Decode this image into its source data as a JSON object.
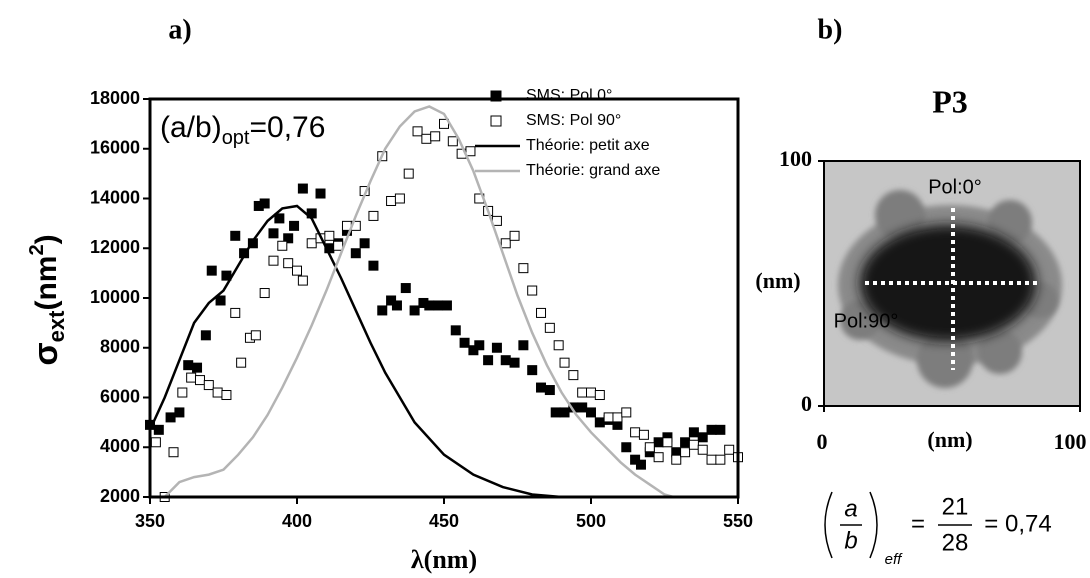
{
  "chart_data": [
    {
      "type": "combo",
      "panel": "a)",
      "annotation": {
        "text": "(a/b)",
        "sub": "opt",
        "suffix": "=0,76"
      },
      "ylabel": {
        "symbol": "σ",
        "sub": "ext",
        "unit": "(nm",
        "sup": "2",
        "close": ")"
      },
      "xlabel": "λ(nm)",
      "xlim": [
        350,
        550
      ],
      "xticks": [
        350,
        400,
        450,
        500,
        550
      ],
      "ylim": [
        2000,
        18000
      ],
      "yticks": [
        2000,
        4000,
        6000,
        8000,
        10000,
        12000,
        14000,
        16000,
        18000
      ],
      "legend": "top-right",
      "series": [
        {
          "name": "SMS: Pol 0°",
          "type": "scatter",
          "marker": "filled",
          "color": "#000000",
          "x": [
            350,
            353,
            357,
            360,
            363,
            366,
            369,
            371,
            374,
            376,
            379,
            382,
            385,
            387,
            389,
            392,
            394,
            397,
            399,
            402,
            405,
            408,
            411,
            414,
            417,
            420,
            423,
            426,
            429,
            432,
            434,
            437,
            440,
            443,
            445,
            448,
            451,
            454,
            457,
            460,
            462,
            465,
            468,
            471,
            474,
            477,
            480,
            483,
            486,
            488,
            491,
            494,
            497,
            500,
            503,
            506,
            509,
            512,
            515,
            517,
            520,
            523,
            526,
            529,
            532,
            535,
            538,
            541,
            544
          ],
          "values": [
            4900,
            4700,
            5200,
            5400,
            7300,
            7200,
            8500,
            11100,
            9900,
            10900,
            12500,
            11800,
            12200,
            13700,
            13800,
            12600,
            13200,
            12400,
            12900,
            14400,
            13400,
            14200,
            12000,
            12200,
            12700,
            11800,
            12200,
            11300,
            9500,
            9900,
            9700,
            10400,
            9500,
            9800,
            9700,
            9700,
            9700,
            8700,
            8200,
            7900,
            8100,
            7500,
            8000,
            7500,
            7400,
            8100,
            7100,
            6400,
            6300,
            5400,
            5400,
            5600,
            5600,
            5400,
            5000,
            5100,
            4900,
            4000,
            3500,
            3300,
            3800,
            4200,
            4400,
            3800,
            4200,
            4600,
            4400,
            4700,
            4700
          ]
        },
        {
          "name": "SMS: Pol 90°",
          "type": "scatter",
          "marker": "open",
          "color": "#000000",
          "x": [
            352,
            355,
            358,
            361,
            364,
            367,
            370,
            373,
            376,
            379,
            381,
            384,
            386,
            389,
            392,
            395,
            397,
            400,
            402,
            405,
            408,
            411,
            414,
            417,
            420,
            423,
            426,
            429,
            432,
            435,
            438,
            441,
            444,
            447,
            450,
            453,
            456,
            459,
            462,
            465,
            468,
            471,
            474,
            477,
            480,
            483,
            486,
            489,
            491,
            494,
            497,
            500,
            503,
            506,
            509,
            512,
            515,
            518,
            520,
            523,
            526,
            529,
            532,
            535,
            538,
            541,
            544,
            547,
            550
          ],
          "values": [
            4200,
            2000,
            3800,
            6200,
            6800,
            6700,
            6500,
            6200,
            6100,
            9400,
            7400,
            8400,
            8500,
            10200,
            11500,
            12100,
            11400,
            11100,
            10700,
            12200,
            12400,
            12500,
            12100,
            12900,
            12900,
            14300,
            13300,
            15700,
            13900,
            14000,
            15000,
            16700,
            16400,
            16500,
            17000,
            16300,
            15800,
            15900,
            14000,
            13500,
            13100,
            12200,
            12500,
            11200,
            10300,
            9400,
            8800,
            8100,
            7400,
            6900,
            6200,
            6200,
            6100,
            5200,
            5200,
            5400,
            4600,
            4500,
            4000,
            3600,
            4200,
            3500,
            3800,
            4100,
            3900,
            3500,
            3500,
            3900,
            3600
          ]
        },
        {
          "name": "Théorie: petit axe",
          "type": "line",
          "color": "#000000",
          "x": [
            350,
            355,
            360,
            365,
            370,
            375,
            380,
            385,
            390,
            395,
            400,
            405,
            410,
            415,
            420,
            425,
            430,
            440,
            450,
            460,
            470,
            480,
            490
          ],
          "values": [
            4700,
            6000,
            7500,
            9000,
            9800,
            10300,
            11300,
            12300,
            13100,
            13600,
            13700,
            13200,
            12000,
            10800,
            9500,
            8200,
            7000,
            5000,
            3700,
            2900,
            2400,
            2100,
            2000
          ]
        },
        {
          "name": "Théorie: grand axe",
          "type": "line",
          "color": "#b4b4b4",
          "x": [
            355,
            360,
            365,
            370,
            375,
            380,
            385,
            390,
            395,
            400,
            405,
            410,
            415,
            420,
            425,
            430,
            435,
            440,
            445,
            450,
            455,
            460,
            465,
            470,
            475,
            480,
            485,
            490,
            495,
            500,
            505,
            510,
            515,
            520,
            525,
            528
          ],
          "values": [
            2000,
            2600,
            2800,
            2900,
            3100,
            3700,
            4400,
            5300,
            6400,
            7600,
            8900,
            10300,
            11800,
            13300,
            14700,
            16000,
            16900,
            17500,
            17700,
            17400,
            16400,
            15100,
            13500,
            11800,
            10100,
            8600,
            7300,
            6200,
            5300,
            4600,
            4000,
            3400,
            2900,
            2500,
            2100,
            2000
          ]
        }
      ]
    },
    {
      "type": "image",
      "panel": "b)",
      "title": "P3",
      "xlabel": "(nm)",
      "ylabel": "(nm)",
      "xlim": [
        0,
        100
      ],
      "xticks": [
        0,
        100
      ],
      "ylim": [
        0,
        100
      ],
      "yticks": [
        0,
        100
      ],
      "annotations": [
        "Pol:0°",
        "Pol:90°"
      ],
      "formula": {
        "num_left": "a",
        "den_left": "b",
        "sub": "eff",
        "eq": "=",
        "num": "21",
        "den": "28",
        "result": "= 0,74"
      }
    }
  ]
}
